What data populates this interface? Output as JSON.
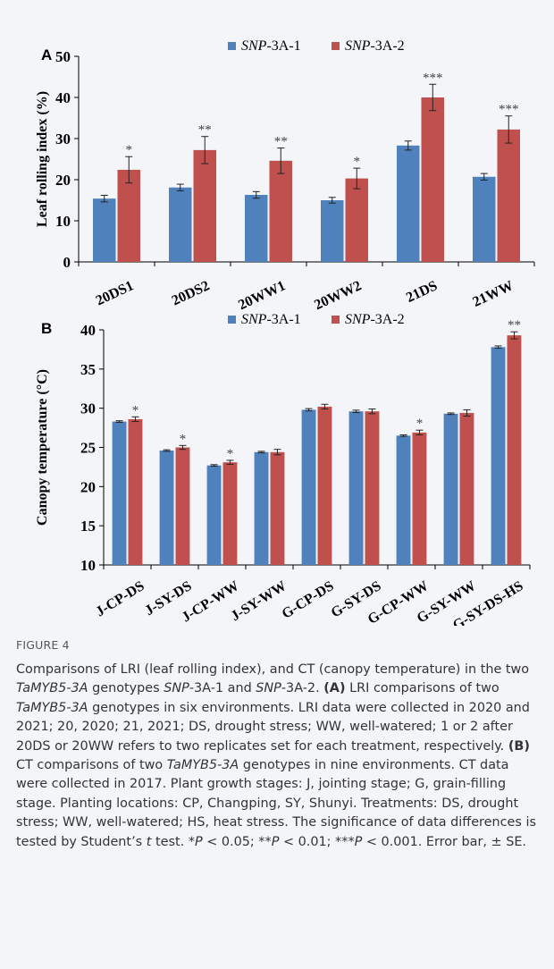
{
  "colors": {
    "series1": "#4f81bd",
    "series2": "#c0504d",
    "background": "#f3f5f8",
    "text": "#000000"
  },
  "chart_data": [
    {
      "type": "bar",
      "panel": "A",
      "ylabel": "Leaf rolling index (%)",
      "ylim": [
        0,
        50
      ],
      "yticks": [
        0,
        10,
        20,
        30,
        40,
        50
      ],
      "categories": [
        "20DS1",
        "20DS2",
        "20WW1",
        "20WW2",
        "21DS",
        "21WW"
      ],
      "series": [
        {
          "name": "SNP-3A-1",
          "name_italic": "SNP",
          "name_rest": "-3A-1",
          "values": [
            15.4,
            18.1,
            16.3,
            15.0,
            28.3,
            20.7
          ],
          "errors": [
            0.8,
            0.8,
            0.8,
            0.7,
            1.1,
            0.8
          ]
        },
        {
          "name": "SNP-3A-2",
          "name_italic": "SNP",
          "name_rest": "-3A-2",
          "values": [
            22.4,
            27.2,
            24.6,
            20.3,
            40.0,
            32.2
          ],
          "errors": [
            3.2,
            3.3,
            3.1,
            2.5,
            3.2,
            3.3
          ]
        }
      ],
      "significance": [
        "*",
        "**",
        "**",
        "*",
        "***",
        "***"
      ],
      "legend": "top-center",
      "grid": false
    },
    {
      "type": "bar",
      "panel": "B",
      "ylabel": "Canopy temperature (°C)",
      "ylim": [
        10,
        40
      ],
      "yticks": [
        10,
        15,
        20,
        25,
        30,
        35,
        40
      ],
      "categories": [
        "J-CP-DS",
        "J-SY-DS",
        "J-CP-WW",
        "J-SY-WW",
        "G-CP-DS",
        "G-SY-DS",
        "G-CP-WW",
        "G-SY-WW",
        "G-SY-DS-HS"
      ],
      "series": [
        {
          "name": "SNP-3A-1",
          "name_italic": "SNP",
          "name_rest": "-3A-1",
          "values": [
            28.3,
            24.6,
            22.7,
            24.4,
            29.8,
            29.6,
            26.5,
            29.3,
            37.8
          ],
          "errors": [
            0.1,
            0.1,
            0.1,
            0.1,
            0.15,
            0.15,
            0.1,
            0.1,
            0.15
          ]
        },
        {
          "name": "SNP-3A-2",
          "name_italic": "SNP",
          "name_rest": "-3A-2",
          "values": [
            28.6,
            25.0,
            23.1,
            24.4,
            30.2,
            29.6,
            26.9,
            29.4,
            39.3
          ],
          "errors": [
            0.3,
            0.25,
            0.25,
            0.35,
            0.3,
            0.3,
            0.3,
            0.4,
            0.45
          ]
        }
      ],
      "significance": [
        "*",
        "*",
        "*",
        "",
        "",
        "",
        "*",
        "",
        "**"
      ],
      "legend": "top-center",
      "grid": false
    }
  ],
  "figure_label": "FIGURE 4",
  "caption": {
    "s1": "Comparisons of LRI (leaf rolling index), and CT (canopy temperature) in the two ",
    "gene": "TaMYB5-3A",
    "s2": " genotypes ",
    "snp": "SNP",
    "s3": "-3A-1 and ",
    "s4": "-3A-2. ",
    "labelA": "(A)",
    "s5": " LRI comparisons of two ",
    "s6": " genotypes in six environments. LRI data were collected in 2020 and 2021; 20, 2020; 21, 2021; DS, drought stress; WW, well-watered; 1 or 2 after 20DS or 20WW refers to two replicates set for each treatment, respectively. ",
    "labelB": "(B)",
    "s7": " CT comparisons of two ",
    "s8": " genotypes in nine environments. CT data were collected in 2017. Plant growth stages: J, jointing stage; G, grain-filling stage. Planting locations: CP, Changping, SY, Shunyi. Treatments: DS, drought stress; WW, well-watered; HS, heat stress. The significance of data differences is tested by Student’s ",
    "t": "t",
    "s9": " test. *",
    "P": "P",
    "s10": " < 0.05; **",
    "s11": " < 0.01; ***",
    "s12": " < 0.001. Error bar, ± SE."
  }
}
